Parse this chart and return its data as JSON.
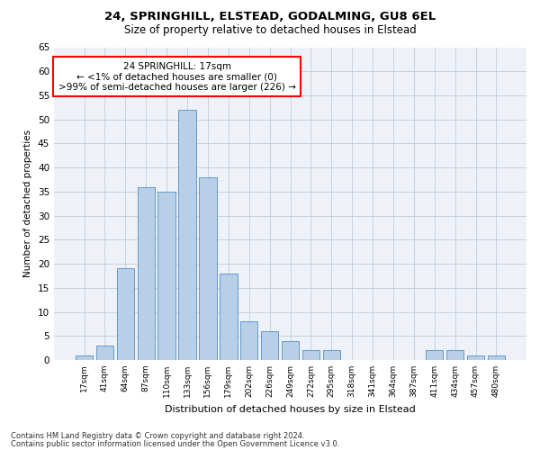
{
  "title1": "24, SPRINGHILL, ELSTEAD, GODALMING, GU8 6EL",
  "title2": "Size of property relative to detached houses in Elstead",
  "xlabel": "Distribution of detached houses by size in Elstead",
  "ylabel": "Number of detached properties",
  "bar_labels": [
    "17sqm",
    "41sqm",
    "64sqm",
    "87sqm",
    "110sqm",
    "133sqm",
    "156sqm",
    "179sqm",
    "202sqm",
    "226sqm",
    "249sqm",
    "272sqm",
    "295sqm",
    "318sqm",
    "341sqm",
    "364sqm",
    "387sqm",
    "411sqm",
    "434sqm",
    "457sqm",
    "480sqm"
  ],
  "bar_values": [
    1,
    3,
    19,
    36,
    35,
    52,
    38,
    18,
    8,
    6,
    4,
    2,
    2,
    0,
    0,
    0,
    0,
    2,
    2,
    1,
    1
  ],
  "bar_color": "#b8cfe8",
  "bar_edge_color": "#6699cc",
  "annotation_text": "24 SPRINGHILL: 17sqm\n← <1% of detached houses are smaller (0)\n>99% of semi-detached houses are larger (226) →",
  "annotation_box_color": "white",
  "annotation_box_edge": "red",
  "ylim": [
    0,
    65
  ],
  "yticks": [
    0,
    5,
    10,
    15,
    20,
    25,
    30,
    35,
    40,
    45,
    50,
    55,
    60,
    65
  ],
  "footer1": "Contains HM Land Registry data © Crown copyright and database right 2024.",
  "footer2": "Contains public sector information licensed under the Open Government Licence v3.0.",
  "bg_color": "#eef2f8",
  "grid_color": "#c5d0e0"
}
